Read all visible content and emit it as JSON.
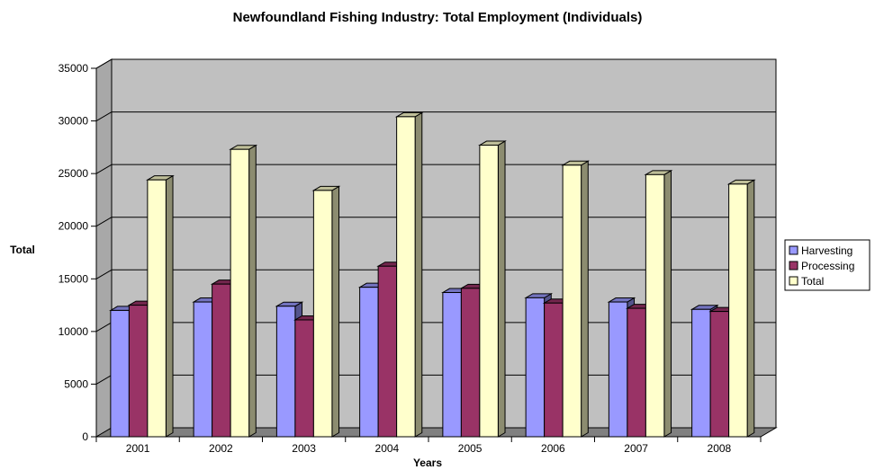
{
  "chart_data": {
    "type": "bar",
    "title": "Newfoundland Fishing Industry: Total Employment (Individuals)",
    "xlabel": "Years",
    "ylabel": "Total",
    "categories": [
      "2001",
      "2002",
      "2003",
      "2004",
      "2005",
      "2006",
      "2007",
      "2008"
    ],
    "ylim": [
      0,
      35000
    ],
    "yticks": [
      "0",
      "5000",
      "10000",
      "15000",
      "20000",
      "25000",
      "30000",
      "35000"
    ],
    "grid": true,
    "legend_position": "right",
    "style": "3d-clustered-column",
    "series": [
      {
        "name": "Harvesting",
        "color": "#9999ff",
        "values": [
          12000,
          12800,
          12400,
          14200,
          13700,
          13200,
          12800,
          12100
        ]
      },
      {
        "name": "Processing",
        "color": "#993366",
        "values": [
          12500,
          14500,
          11100,
          16200,
          14100,
          12700,
          12200,
          11900
        ]
      },
      {
        "name": "Total",
        "color": "#ffffcc",
        "values": [
          24400,
          27300,
          23400,
          30400,
          27700,
          25800,
          24900,
          24000
        ]
      }
    ]
  }
}
